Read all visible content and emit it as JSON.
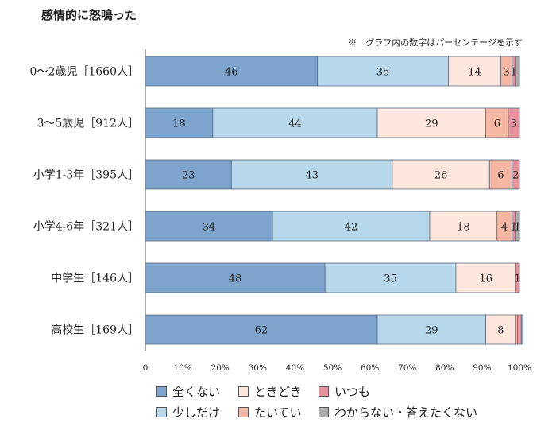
{
  "title": "感情的に怒鳴った",
  "note": "※　グラフ内の数字はパーセンテージを示す",
  "colors": {
    "全くない": "#7da4cd",
    "少しだけ": "#b7d7ea",
    "ときどき": "#fde7dd",
    "たいてい": "#f5b6a2",
    "いつも": "#e8919c",
    "わからない・答えたくない": "#aaaaaa"
  },
  "legend": [
    {
      "label": "全くない",
      "color": "#7da4cd"
    },
    {
      "label": "ときどき",
      "color": "#fde7dd"
    },
    {
      "label": "いつも",
      "color": "#e8919c"
    },
    {
      "label": "少しだけ",
      "color": "#b7d7ea"
    },
    {
      "label": "たいてい",
      "color": "#f5b6a2"
    },
    {
      "label": "わからない・答えたくない",
      "color": "#aaaaaa"
    }
  ],
  "chart_data": {
    "type": "bar",
    "orientation": "horizontal",
    "stacked": true,
    "title": "感情的に怒鳴った",
    "categories": [
      "0～2歳児［1660人］",
      "3～5歳児［912人］",
      "小学1-3年［395人］",
      "小学4-6年［321人］",
      "中学生［146人］",
      "高校生［169人］"
    ],
    "series": [
      {
        "name": "全くない",
        "values": [
          46,
          18,
          23,
          34,
          48,
          62
        ]
      },
      {
        "name": "少しだけ",
        "values": [
          35,
          44,
          43,
          42,
          35,
          29
        ]
      },
      {
        "name": "ときどき",
        "values": [
          14,
          29,
          26,
          18,
          16,
          8
        ]
      },
      {
        "name": "たいてい",
        "values": [
          3,
          6,
          6,
          4,
          0,
          0.5
        ]
      },
      {
        "name": "いつも",
        "values": [
          1,
          3,
          2,
          1,
          1,
          1
        ]
      },
      {
        "name": "わからない・答えたくない",
        "values": [
          1,
          0,
          0,
          1,
          0,
          0.5
        ]
      }
    ],
    "data_labels": [
      [
        "46",
        "35",
        "14",
        "3",
        "1",
        ""
      ],
      [
        "18",
        "44",
        "29",
        "6",
        "3",
        ""
      ],
      [
        "23",
        "43",
        "26",
        "6",
        "2",
        ""
      ],
      [
        "34",
        "42",
        "18",
        "4",
        "1",
        "1"
      ],
      [
        "48",
        "35",
        "16",
        "",
        "1",
        ""
      ],
      [
        "62",
        "29",
        "8",
        "",
        "",
        ""
      ]
    ],
    "xlim": [
      0,
      100
    ],
    "xticks": [
      "0",
      "10%",
      "20%",
      "30%",
      "40%",
      "50%",
      "60%",
      "70%",
      "80%",
      "90%",
      "100%"
    ],
    "grid": false,
    "legend_position": "bottom"
  }
}
